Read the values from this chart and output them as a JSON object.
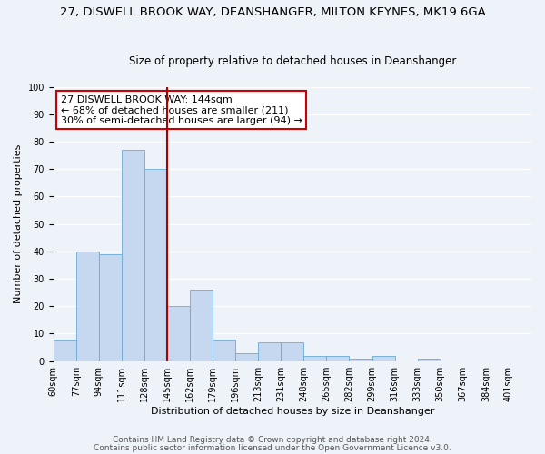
{
  "title": "27, DISWELL BROOK WAY, DEANSHANGER, MILTON KEYNES, MK19 6GA",
  "subtitle": "Size of property relative to detached houses in Deanshanger",
  "xlabel": "Distribution of detached houses by size in Deanshanger",
  "ylabel": "Number of detached properties",
  "bin_labels": [
    "60sqm",
    "77sqm",
    "94sqm",
    "111sqm",
    "128sqm",
    "145sqm",
    "162sqm",
    "179sqm",
    "196sqm",
    "213sqm",
    "231sqm",
    "248sqm",
    "265sqm",
    "282sqm",
    "299sqm",
    "316sqm",
    "333sqm",
    "350sqm",
    "367sqm",
    "384sqm",
    "401sqm"
  ],
  "bar_values": [
    8,
    40,
    39,
    77,
    70,
    20,
    26,
    8,
    3,
    7,
    7,
    2,
    2,
    1,
    2,
    0,
    1,
    0,
    0,
    0,
    0
  ],
  "bar_color": "#c5d8f0",
  "bar_edge_color": "#6aaad4",
  "vline_color": "#aa0000",
  "annotation_text": "27 DISWELL BROOK WAY: 144sqm\n← 68% of detached houses are smaller (211)\n30% of semi-detached houses are larger (94) →",
  "annotation_box_color": "#ffffff",
  "annotation_box_edge_color": "#cc0000",
  "ylim": [
    0,
    100
  ],
  "footer1": "Contains HM Land Registry data © Crown copyright and database right 2024.",
  "footer2": "Contains public sector information licensed under the Open Government Licence v3.0.",
  "background_color": "#eef2f9",
  "grid_color": "#ffffff",
  "title_fontsize": 9.5,
  "subtitle_fontsize": 8.5,
  "axis_label_fontsize": 8,
  "tick_fontsize": 7,
  "annotation_fontsize": 8,
  "footer_fontsize": 6.5
}
